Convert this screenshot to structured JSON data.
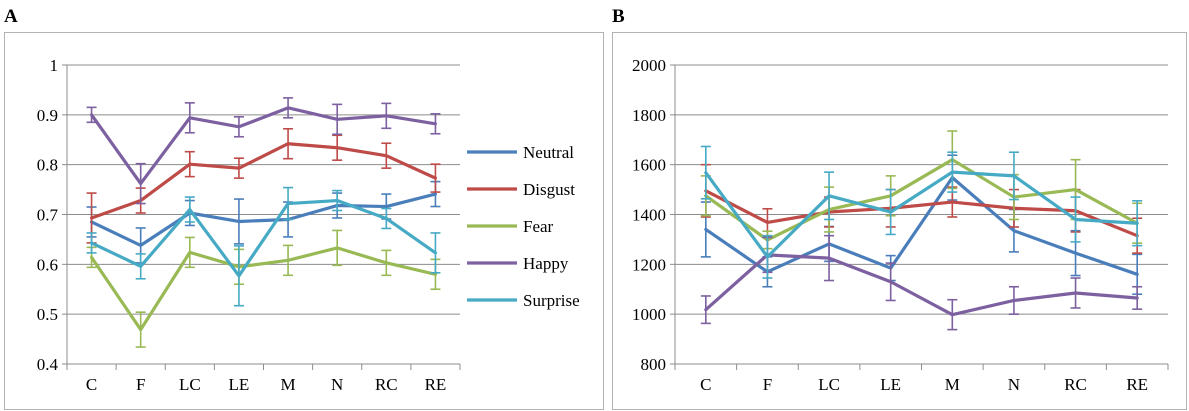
{
  "panels": {
    "a_label": "A",
    "b_label": "B"
  },
  "chart_data": [
    {
      "type": "line",
      "panel": "A",
      "title": "",
      "xlabel": "",
      "ylabel": "",
      "categories": [
        "C",
        "F",
        "LC",
        "LE",
        "M",
        "N",
        "RC",
        "RE"
      ],
      "ylim": [
        0.4,
        1.0
      ],
      "yticks": [
        0.4,
        0.5,
        0.6,
        0.7,
        0.8,
        0.9,
        1.0
      ],
      "ytick_labels": [
        "0.4",
        "0.5",
        "0.6",
        "0.7",
        "0.8",
        "0.9",
        "1"
      ],
      "grid": true,
      "legend": "right",
      "series": [
        {
          "name": "Neutral",
          "color": "#4a7ebb",
          "values": [
            0.685,
            0.638,
            0.703,
            0.686,
            0.69,
            0.718,
            0.716,
            0.741
          ],
          "errors": [
            0.03,
            0.035,
            0.025,
            0.045,
            0.035,
            0.025,
            0.025,
            0.025
          ]
        },
        {
          "name": "Disgust",
          "color": "#be4b48",
          "values": [
            0.693,
            0.728,
            0.801,
            0.793,
            0.842,
            0.834,
            0.818,
            0.773
          ],
          "errors": [
            0.05,
            0.025,
            0.025,
            0.02,
            0.03,
            0.025,
            0.025,
            0.028
          ]
        },
        {
          "name": "Fear",
          "color": "#98b954",
          "values": [
            0.614,
            0.469,
            0.624,
            0.595,
            0.608,
            0.633,
            0.603,
            0.58
          ],
          "errors": [
            0.02,
            0.035,
            0.03,
            0.035,
            0.03,
            0.035,
            0.025,
            0.03
          ]
        },
        {
          "name": "Happy",
          "color": "#7d60a0",
          "values": [
            0.9,
            0.762,
            0.894,
            0.876,
            0.914,
            0.891,
            0.898,
            0.882
          ],
          "errors": [
            0.015,
            0.04,
            0.03,
            0.02,
            0.02,
            0.03,
            0.025,
            0.02
          ]
        },
        {
          "name": "Surprise",
          "color": "#46aac5",
          "values": [
            0.643,
            0.596,
            0.71,
            0.577,
            0.722,
            0.728,
            0.692,
            0.623
          ],
          "errors": [
            0.02,
            0.025,
            0.025,
            0.06,
            0.032,
            0.02,
            0.02,
            0.04
          ]
        }
      ]
    },
    {
      "type": "line",
      "panel": "B",
      "title": "",
      "xlabel": "",
      "ylabel": "",
      "categories": [
        "C",
        "F",
        "LC",
        "LE",
        "M",
        "N",
        "RC",
        "RE"
      ],
      "ylim": [
        800,
        2000
      ],
      "yticks": [
        800,
        1000,
        1200,
        1400,
        1600,
        1800,
        2000
      ],
      "ytick_labels": [
        "800",
        "1000",
        "1200",
        "1400",
        "1600",
        "1800",
        "2000"
      ],
      "grid": true,
      "legend": "none",
      "series": [
        {
          "name": "Neutral",
          "color": "#4a7ebb",
          "values": [
            1340,
            1170,
            1282,
            1185,
            1548,
            1335,
            1245,
            1160
          ],
          "errors": [
            110,
            60,
            70,
            50,
            90,
            85,
            90,
            80
          ]
        },
        {
          "name": "Disgust",
          "color": "#be4b48",
          "values": [
            1495,
            1368,
            1410,
            1425,
            1450,
            1425,
            1415,
            1315
          ],
          "errors": [
            105,
            55,
            60,
            75,
            60,
            75,
            85,
            70
          ]
        },
        {
          "name": "Fear",
          "color": "#98b954",
          "values": [
            1475,
            1298,
            1420,
            1475,
            1620,
            1470,
            1500,
            1365
          ],
          "errors": [
            80,
            35,
            90,
            80,
            115,
            90,
            120,
            80
          ]
        },
        {
          "name": "Happy",
          "color": "#7d60a0",
          "values": [
            1018,
            1238,
            1225,
            1130,
            998,
            1055,
            1085,
            1065
          ],
          "errors": [
            55,
            70,
            90,
            75,
            60,
            55,
            60,
            45
          ]
        },
        {
          "name": "Surprise",
          "color": "#46aac5",
          "values": [
            1568,
            1230,
            1475,
            1410,
            1570,
            1555,
            1380,
            1365
          ],
          "errors": [
            105,
            85,
            95,
            90,
            80,
            95,
            90,
            90
          ]
        }
      ]
    }
  ]
}
